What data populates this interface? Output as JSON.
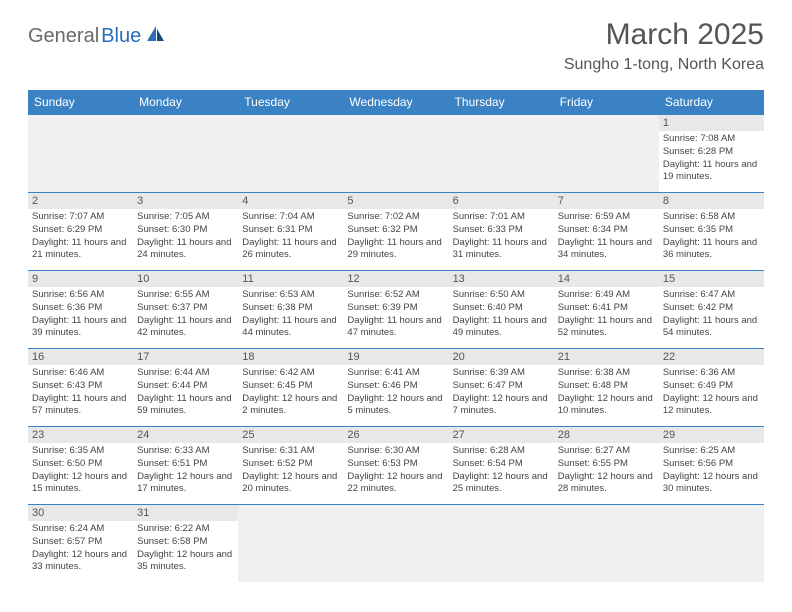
{
  "logo": {
    "part1": "General",
    "part2": "Blue"
  },
  "title": "March 2025",
  "location": "Sungho 1-tong, North Korea",
  "weekdays": [
    "Sunday",
    "Monday",
    "Tuesday",
    "Wednesday",
    "Thursday",
    "Friday",
    "Saturday"
  ],
  "colors": {
    "header_bar": "#3b82c4",
    "daynum_bg": "#e8e8e8",
    "empty_bg": "#f0f0f0",
    "logo_gray": "#6a6a6a",
    "logo_blue": "#2a6db8"
  },
  "weeks": [
    [
      null,
      null,
      null,
      null,
      null,
      null,
      {
        "n": "1",
        "sunrise": "7:08 AM",
        "sunset": "6:28 PM",
        "daylight": "11 hours and 19 minutes."
      }
    ],
    [
      {
        "n": "2",
        "sunrise": "7:07 AM",
        "sunset": "6:29 PM",
        "daylight": "11 hours and 21 minutes."
      },
      {
        "n": "3",
        "sunrise": "7:05 AM",
        "sunset": "6:30 PM",
        "daylight": "11 hours and 24 minutes."
      },
      {
        "n": "4",
        "sunrise": "7:04 AM",
        "sunset": "6:31 PM",
        "daylight": "11 hours and 26 minutes."
      },
      {
        "n": "5",
        "sunrise": "7:02 AM",
        "sunset": "6:32 PM",
        "daylight": "11 hours and 29 minutes."
      },
      {
        "n": "6",
        "sunrise": "7:01 AM",
        "sunset": "6:33 PM",
        "daylight": "11 hours and 31 minutes."
      },
      {
        "n": "7",
        "sunrise": "6:59 AM",
        "sunset": "6:34 PM",
        "daylight": "11 hours and 34 minutes."
      },
      {
        "n": "8",
        "sunrise": "6:58 AM",
        "sunset": "6:35 PM",
        "daylight": "11 hours and 36 minutes."
      }
    ],
    [
      {
        "n": "9",
        "sunrise": "6:56 AM",
        "sunset": "6:36 PM",
        "daylight": "11 hours and 39 minutes."
      },
      {
        "n": "10",
        "sunrise": "6:55 AM",
        "sunset": "6:37 PM",
        "daylight": "11 hours and 42 minutes."
      },
      {
        "n": "11",
        "sunrise": "6:53 AM",
        "sunset": "6:38 PM",
        "daylight": "11 hours and 44 minutes."
      },
      {
        "n": "12",
        "sunrise": "6:52 AM",
        "sunset": "6:39 PM",
        "daylight": "11 hours and 47 minutes."
      },
      {
        "n": "13",
        "sunrise": "6:50 AM",
        "sunset": "6:40 PM",
        "daylight": "11 hours and 49 minutes."
      },
      {
        "n": "14",
        "sunrise": "6:49 AM",
        "sunset": "6:41 PM",
        "daylight": "11 hours and 52 minutes."
      },
      {
        "n": "15",
        "sunrise": "6:47 AM",
        "sunset": "6:42 PM",
        "daylight": "11 hours and 54 minutes."
      }
    ],
    [
      {
        "n": "16",
        "sunrise": "6:46 AM",
        "sunset": "6:43 PM",
        "daylight": "11 hours and 57 minutes."
      },
      {
        "n": "17",
        "sunrise": "6:44 AM",
        "sunset": "6:44 PM",
        "daylight": "11 hours and 59 minutes."
      },
      {
        "n": "18",
        "sunrise": "6:42 AM",
        "sunset": "6:45 PM",
        "daylight": "12 hours and 2 minutes."
      },
      {
        "n": "19",
        "sunrise": "6:41 AM",
        "sunset": "6:46 PM",
        "daylight": "12 hours and 5 minutes."
      },
      {
        "n": "20",
        "sunrise": "6:39 AM",
        "sunset": "6:47 PM",
        "daylight": "12 hours and 7 minutes."
      },
      {
        "n": "21",
        "sunrise": "6:38 AM",
        "sunset": "6:48 PM",
        "daylight": "12 hours and 10 minutes."
      },
      {
        "n": "22",
        "sunrise": "6:36 AM",
        "sunset": "6:49 PM",
        "daylight": "12 hours and 12 minutes."
      }
    ],
    [
      {
        "n": "23",
        "sunrise": "6:35 AM",
        "sunset": "6:50 PM",
        "daylight": "12 hours and 15 minutes."
      },
      {
        "n": "24",
        "sunrise": "6:33 AM",
        "sunset": "6:51 PM",
        "daylight": "12 hours and 17 minutes."
      },
      {
        "n": "25",
        "sunrise": "6:31 AM",
        "sunset": "6:52 PM",
        "daylight": "12 hours and 20 minutes."
      },
      {
        "n": "26",
        "sunrise": "6:30 AM",
        "sunset": "6:53 PM",
        "daylight": "12 hours and 22 minutes."
      },
      {
        "n": "27",
        "sunrise": "6:28 AM",
        "sunset": "6:54 PM",
        "daylight": "12 hours and 25 minutes."
      },
      {
        "n": "28",
        "sunrise": "6:27 AM",
        "sunset": "6:55 PM",
        "daylight": "12 hours and 28 minutes."
      },
      {
        "n": "29",
        "sunrise": "6:25 AM",
        "sunset": "6:56 PM",
        "daylight": "12 hours and 30 minutes."
      }
    ],
    [
      {
        "n": "30",
        "sunrise": "6:24 AM",
        "sunset": "6:57 PM",
        "daylight": "12 hours and 33 minutes."
      },
      {
        "n": "31",
        "sunrise": "6:22 AM",
        "sunset": "6:58 PM",
        "daylight": "12 hours and 35 minutes."
      },
      null,
      null,
      null,
      null,
      null
    ]
  ],
  "labels": {
    "sunrise_prefix": "Sunrise: ",
    "sunset_prefix": "Sunset: ",
    "daylight_prefix": "Daylight: "
  }
}
